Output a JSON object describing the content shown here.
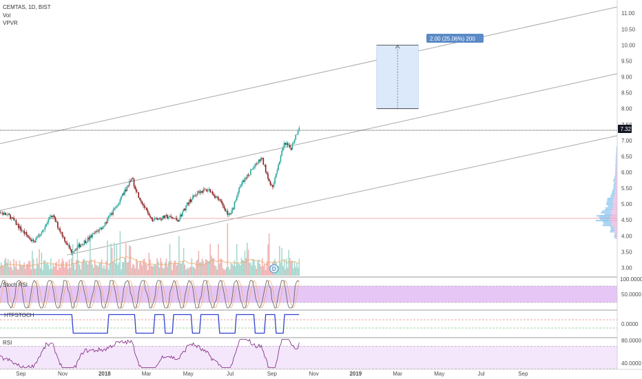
{
  "header": {
    "symbol_line": "CEMTAS, 1D, BIST",
    "indicators": [
      "Vol",
      "VPVR"
    ]
  },
  "colors": {
    "up": "#26a69a",
    "down": "#8b1a1a",
    "vol_up": "#a7d8cf",
    "vol_down": "#f2b3b3",
    "channel": "#a8a8a8",
    "stoch_k": "#5a5a5a",
    "stoch_band": "#e5c6f5",
    "fstoch": "#3040d0",
    "rsi": "#7a1f7a",
    "rsi_band": "#f4e6fb",
    "projection": "#dbe9fb",
    "badge": "#5b8ac6",
    "price_tag": "#131722"
  },
  "price_badge": "7.32",
  "projection_label": "2.00 (25.06%) 200",
  "dividend_marker": "D",
  "chart_data": [
    {
      "type": "line",
      "name": "price",
      "title": "CEMTAS, 1D, BIST",
      "x_axis_labels": [
        "Sep",
        "Nov",
        "2018",
        "Mar",
        "May",
        "Jul",
        "Sep",
        "Nov",
        "2019",
        "Mar",
        "May",
        "Jul",
        "Sep"
      ],
      "x_axis_months": [
        0,
        2,
        4,
        6,
        8,
        10,
        12,
        14,
        16,
        18,
        20,
        22,
        24
      ],
      "y_ticks": [
        "3.00",
        "3.50",
        "4.00",
        "4.50",
        "5.00",
        "5.50",
        "6.00",
        "6.50",
        "7.00",
        "7.50",
        "8.00",
        "8.50",
        "9.00",
        "9.50",
        "10.00",
        "10.50",
        "11.00"
      ],
      "ylim": [
        2.75,
        11.2
      ],
      "xlim": [
        -1,
        28.5
      ],
      "last_price": 7.32,
      "horizontal_levels": [
        7.32,
        4.55
      ],
      "price_path": {
        "x": [
          -1,
          -0.5,
          0,
          0.6,
          1,
          1.5,
          2,
          2.4,
          2.8,
          3.3,
          4,
          4.6,
          5,
          5.3,
          5.6,
          6.2,
          7,
          7.5,
          8,
          8.5,
          9,
          9.5,
          10,
          10.5,
          11,
          11.5,
          12,
          12.3,
          12.6,
          12.9,
          13.3
        ],
        "y": [
          4.75,
          4.6,
          4.2,
          3.8,
          4.15,
          4.65,
          4.0,
          3.5,
          3.7,
          3.95,
          4.35,
          5.0,
          5.45,
          5.8,
          5.3,
          4.5,
          4.6,
          4.5,
          5.05,
          5.4,
          5.45,
          5.1,
          4.6,
          5.6,
          6.05,
          6.45,
          5.5,
          6.25,
          6.9,
          6.75,
          7.45
        ]
      },
      "channel_lines": [
        {
          "x": [
            -1,
            28.5
          ],
          "y": [
            6.9,
            11.2
          ]
        },
        {
          "x": [
            -1,
            28.5
          ],
          "y": [
            4.8,
            9.1
          ]
        },
        {
          "x": [
            2.2,
            28.5
          ],
          "y": [
            3.4,
            7.15
          ]
        }
      ],
      "projection": {
        "x": [
          17.0,
          19.0
        ],
        "y": [
          8.0,
          10.0
        ]
      },
      "volume_profile": {
        "price": [
          4.0,
          4.2,
          4.4,
          4.55,
          4.7,
          4.9,
          5.1,
          5.3,
          5.5,
          5.7,
          5.9,
          6.1,
          6.3,
          6.5,
          6.7
        ],
        "relative": [
          0.15,
          0.35,
          0.7,
          1.0,
          0.8,
          0.55,
          0.5,
          0.3,
          0.22,
          0.18,
          0.12,
          0.1,
          0.09,
          0.07,
          0.05
        ]
      }
    },
    {
      "type": "line",
      "name": "Stoch RSI",
      "y_ticks": [
        "100.0000",
        "50.0000"
      ],
      "ylim": [
        0,
        100
      ],
      "band": [
        20,
        80
      ]
    },
    {
      "type": "line",
      "name": "HTFSTOCH",
      "y_ticks": [
        "0.0000"
      ],
      "ylim": [
        -100,
        100
      ]
    },
    {
      "type": "line",
      "name": "RSI",
      "y_ticks": [
        "80.0000",
        "40.0000"
      ],
      "ylim": [
        30,
        85
      ],
      "band": [
        30,
        70
      ]
    }
  ]
}
